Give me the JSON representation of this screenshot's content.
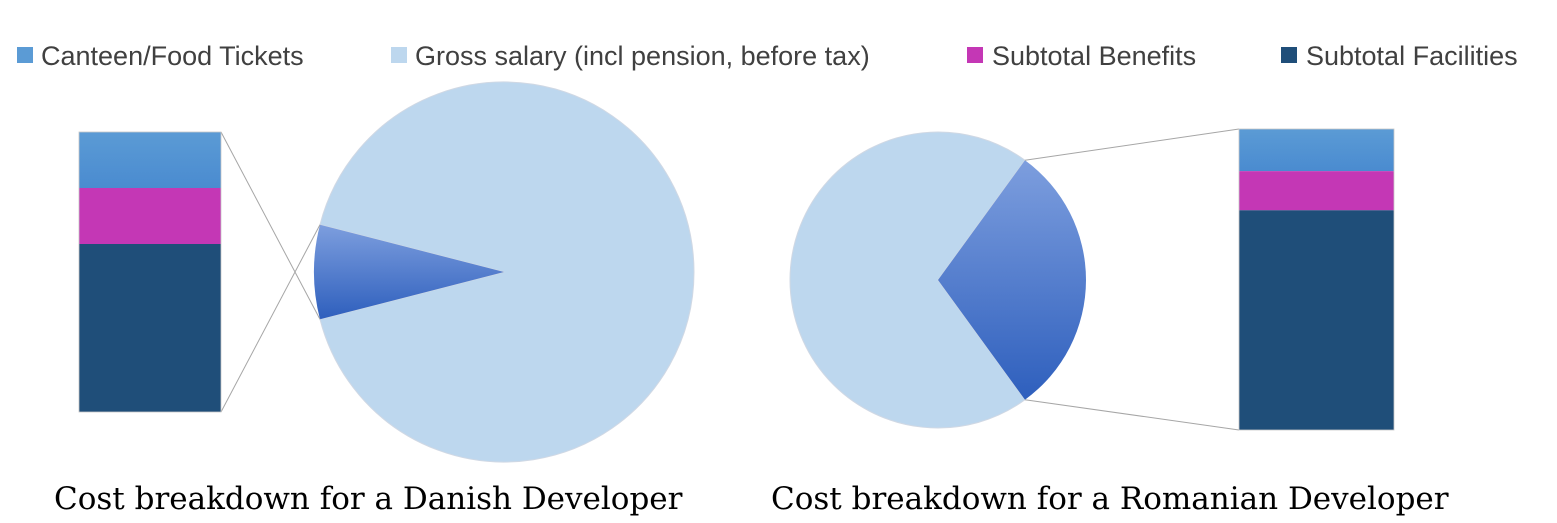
{
  "colors": {
    "canteen": "#5b9bd5",
    "gross": "#bdd7ee",
    "benefits": "#c437b5",
    "facilities": "#1f4e79",
    "other_slice_light": "#7d9ede",
    "other_slice_dark": "#2e5fbd",
    "connector": "#a6a6a6"
  },
  "legend": [
    {
      "key": "canteen",
      "label": "Canteen/Food Tickets",
      "icon": "blue-square-icon"
    },
    {
      "key": "gross",
      "label": "Gross salary (incl pension, before tax)",
      "icon": "light-blue-square-icon"
    },
    {
      "key": "benefits",
      "label": "Subtotal Benefits",
      "icon": "magenta-square-icon"
    },
    {
      "key": "facilities",
      "label": "Subtotal Facilities",
      "icon": "navy-square-icon"
    }
  ],
  "chart_data": [
    {
      "type": "bar-of-pie",
      "title": "Cost breakdown for a Danish Developer",
      "pie": {
        "gross_fraction": 0.92,
        "other_fraction": 0.08
      },
      "stack": [
        {
          "key": "canteen",
          "value": 0.2
        },
        {
          "key": "benefits",
          "value": 0.2
        },
        {
          "key": "facilities",
          "value": 0.6
        }
      ]
    },
    {
      "type": "bar-of-pie",
      "title": "Cost breakdown for a Romanian Developer",
      "pie": {
        "gross_fraction": 0.7,
        "other_fraction": 0.3
      },
      "stack": [
        {
          "key": "canteen",
          "value": 0.14
        },
        {
          "key": "benefits",
          "value": 0.13
        },
        {
          "key": "facilities",
          "value": 0.73
        }
      ]
    }
  ]
}
